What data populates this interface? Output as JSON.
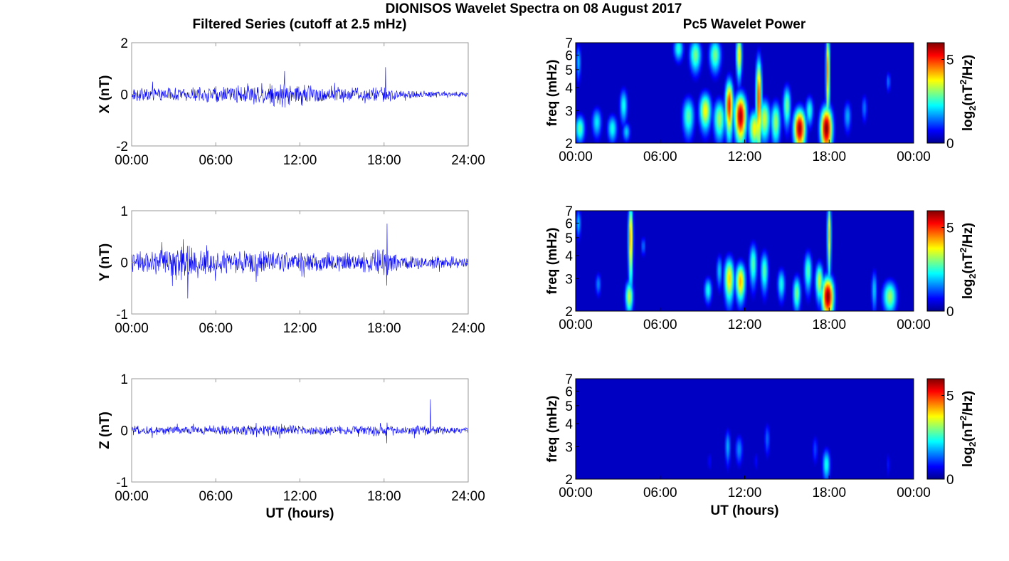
{
  "figure": {
    "title": "DIONISOS Wavelet Spectra on 08 August 2017",
    "left_column_title": "Filtered Series (cutoff at 2.5 mHz)",
    "right_column_title": "Pc5 Wavelet Power"
  },
  "chart_data": [
    {
      "type": "line",
      "panel": "time-series-x",
      "ylabel": "X (nT)",
      "xlabel": "",
      "ylim": [
        -2,
        2
      ],
      "yticks": [
        "-2",
        "0",
        "2"
      ],
      "xlim": [
        0,
        24
      ],
      "xticks": [
        "00:00",
        "06:00",
        "12:00",
        "18:00",
        "24:00"
      ],
      "series": [
        {
          "color": "#0000ff",
          "envelope_hours": [
            0,
            2,
            4,
            6,
            8,
            9,
            10,
            11,
            12,
            13,
            14,
            15,
            16,
            17,
            18,
            18.5,
            19,
            20,
            22,
            24
          ],
          "envelope_nT": [
            0.25,
            0.25,
            0.25,
            0.3,
            0.35,
            0.4,
            0.45,
            0.45,
            0.4,
            0.35,
            0.3,
            0.3,
            0.25,
            0.25,
            0.3,
            0.35,
            0.15,
            0.15,
            0.12,
            0.1
          ],
          "spikes": [
            {
              "hour": 18.1,
              "max": 1.05,
              "min": -1.3
            },
            {
              "hour": 10.9,
              "max": 0.9,
              "min": -0.6
            }
          ]
        }
      ],
      "grid": false
    },
    {
      "type": "line",
      "panel": "time-series-y",
      "ylabel": "Y (nT)",
      "xlabel": "",
      "ylim": [
        -1,
        1
      ],
      "yticks": [
        "-1",
        "0",
        "1"
      ],
      "xlim": [
        0,
        24
      ],
      "xticks": [
        "00:00",
        "06:00",
        "12:00",
        "18:00",
        "24:00"
      ],
      "series": [
        {
          "color": "#0000ff",
          "envelope_hours": [
            0,
            2,
            3,
            4,
            5,
            6,
            8,
            10,
            12,
            14,
            16,
            17,
            18,
            19,
            20,
            22,
            24
          ],
          "envelope_nT": [
            0.2,
            0.22,
            0.28,
            0.32,
            0.25,
            0.22,
            0.22,
            0.2,
            0.18,
            0.18,
            0.16,
            0.2,
            0.26,
            0.15,
            0.12,
            0.12,
            0.08
          ],
          "spikes": [
            {
              "hour": 4.0,
              "max": 0.6,
              "min": -0.7
            },
            {
              "hour": 18.2,
              "max": 0.75,
              "min": -0.45
            }
          ]
        }
      ],
      "grid": false
    },
    {
      "type": "line",
      "panel": "time-series-z",
      "ylabel": "Z (nT)",
      "xlabel": "UT (hours)",
      "ylim": [
        -1,
        1
      ],
      "yticks": [
        "-1",
        "0",
        "1"
      ],
      "xlim": [
        0,
        24
      ],
      "xticks": [
        "00:00",
        "06:00",
        "12:00",
        "18:00",
        "24:00"
      ],
      "series": [
        {
          "color": "#0000ff",
          "envelope_hours": [
            0,
            4,
            8,
            10,
            12,
            14,
            16,
            18,
            20,
            21,
            22,
            24
          ],
          "envelope_nT": [
            0.08,
            0.08,
            0.1,
            0.1,
            0.09,
            0.09,
            0.08,
            0.1,
            0.08,
            0.1,
            0.07,
            0.06
          ],
          "spikes": [
            {
              "hour": 21.3,
              "max": 0.6,
              "min": -0.1
            },
            {
              "hour": 18.2,
              "max": 0.15,
              "min": -0.25
            }
          ]
        }
      ],
      "grid": false
    },
    {
      "type": "heatmap",
      "panel": "wavelet-power-x",
      "ylabel": "freq (mHz)",
      "xlabel": "",
      "ylim": [
        2,
        7
      ],
      "yticks": [
        "2",
        "3",
        "4",
        "5",
        "6",
        "7"
      ],
      "xlim": [
        0,
        24
      ],
      "xticks": [
        "00:00",
        "06:00",
        "12:00",
        "18:00",
        "00:00"
      ],
      "colorbar": {
        "label": "log2(nT^2/Hz)",
        "ticks": [
          "0",
          "5"
        ],
        "range": [
          0,
          6
        ],
        "colormap": "jet"
      },
      "blobs": [
        {
          "t": 0.3,
          "f": 2.4,
          "p": 2.8,
          "wt": 0.25,
          "wf": 0.3
        },
        {
          "t": 0.2,
          "f": 5.5,
          "p": 2.0,
          "wt": 0.12,
          "wf": 0.9
        },
        {
          "t": 1.5,
          "f": 2.6,
          "p": 2.2,
          "wt": 0.25,
          "wf": 0.35
        },
        {
          "t": 2.6,
          "f": 2.4,
          "p": 2.4,
          "wt": 0.25,
          "wf": 0.3
        },
        {
          "t": 3.4,
          "f": 3.2,
          "p": 2.4,
          "wt": 0.2,
          "wf": 0.5
        },
        {
          "t": 3.6,
          "f": 2.3,
          "p": 2.0,
          "wt": 0.2,
          "wf": 0.2
        },
        {
          "t": 7.3,
          "f": 6.5,
          "p": 2.5,
          "wt": 0.25,
          "wf": 0.7
        },
        {
          "t": 8.0,
          "f": 2.8,
          "p": 2.8,
          "wt": 0.3,
          "wf": 0.5
        },
        {
          "t": 8.5,
          "f": 6.0,
          "p": 3.0,
          "wt": 0.3,
          "wf": 0.9
        },
        {
          "t": 9.2,
          "f": 3.0,
          "p": 3.8,
          "wt": 0.3,
          "wf": 0.5
        },
        {
          "t": 9.9,
          "f": 6.0,
          "p": 3.0,
          "wt": 0.3,
          "wf": 0.9
        },
        {
          "t": 10.2,
          "f": 2.7,
          "p": 3.2,
          "wt": 0.3,
          "wf": 0.5
        },
        {
          "t": 10.9,
          "f": 3.2,
          "p": 5.2,
          "wt": 0.2,
          "wf": 0.8
        },
        {
          "t": 11.7,
          "f": 2.8,
          "p": 5.8,
          "wt": 0.3,
          "wf": 0.6
        },
        {
          "t": 11.6,
          "f": 6.0,
          "p": 4.0,
          "wt": 0.15,
          "wf": 1.2
        },
        {
          "t": 12.7,
          "f": 2.4,
          "p": 3.8,
          "wt": 0.3,
          "wf": 0.4
        },
        {
          "t": 13.0,
          "f": 3.5,
          "p": 5.0,
          "wt": 0.15,
          "wf": 1.5
        },
        {
          "t": 13.4,
          "f": 2.7,
          "p": 3.5,
          "wt": 0.3,
          "wf": 0.5
        },
        {
          "t": 14.2,
          "f": 2.6,
          "p": 3.2,
          "wt": 0.25,
          "wf": 0.5
        },
        {
          "t": 15.0,
          "f": 3.2,
          "p": 3.0,
          "wt": 0.2,
          "wf": 0.6
        },
        {
          "t": 15.9,
          "f": 2.4,
          "p": 5.8,
          "wt": 0.3,
          "wf": 0.45
        },
        {
          "t": 16.6,
          "f": 3.0,
          "p": 2.5,
          "wt": 0.2,
          "wf": 0.4
        },
        {
          "t": 17.8,
          "f": 2.4,
          "p": 6.0,
          "wt": 0.3,
          "wf": 0.5
        },
        {
          "t": 17.9,
          "f": 5.0,
          "p": 4.5,
          "wt": 0.1,
          "wf": 2.0
        },
        {
          "t": 19.3,
          "f": 2.8,
          "p": 1.8,
          "wt": 0.2,
          "wf": 0.4
        },
        {
          "t": 20.5,
          "f": 3.1,
          "p": 1.5,
          "wt": 0.15,
          "wf": 0.4
        },
        {
          "t": 22.2,
          "f": 4.3,
          "p": 1.5,
          "wt": 0.12,
          "wf": 0.4
        }
      ]
    },
    {
      "type": "heatmap",
      "panel": "wavelet-power-y",
      "ylabel": "freq (mHz)",
      "xlabel": "",
      "ylim": [
        2,
        7
      ],
      "yticks": [
        "2",
        "3",
        "4",
        "5",
        "6",
        "7"
      ],
      "xlim": [
        0,
        24
      ],
      "xticks": [
        "00:00",
        "06:00",
        "12:00",
        "18:00",
        "00:00"
      ],
      "colorbar": {
        "label": "log2(nT^2/Hz)",
        "ticks": [
          "0",
          "5"
        ],
        "range": [
          0,
          6
        ],
        "colormap": "jet"
      },
      "blobs": [
        {
          "t": 0.2,
          "f": 6.0,
          "p": 2.0,
          "wt": 0.12,
          "wf": 0.8
        },
        {
          "t": 1.6,
          "f": 2.8,
          "p": 1.6,
          "wt": 0.15,
          "wf": 0.3
        },
        {
          "t": 3.8,
          "f": 2.4,
          "p": 3.5,
          "wt": 0.2,
          "wf": 0.35
        },
        {
          "t": 3.9,
          "f": 5.0,
          "p": 4.5,
          "wt": 0.12,
          "wf": 1.8
        },
        {
          "t": 4.8,
          "f": 4.5,
          "p": 1.5,
          "wt": 0.12,
          "wf": 0.4
        },
        {
          "t": 9.4,
          "f": 2.6,
          "p": 2.4,
          "wt": 0.2,
          "wf": 0.3
        },
        {
          "t": 10.2,
          "f": 3.3,
          "p": 2.0,
          "wt": 0.15,
          "wf": 0.5
        },
        {
          "t": 10.9,
          "f": 3.0,
          "p": 4.0,
          "wt": 0.25,
          "wf": 0.6
        },
        {
          "t": 11.7,
          "f": 2.9,
          "p": 4.2,
          "wt": 0.25,
          "wf": 0.5
        },
        {
          "t": 12.6,
          "f": 3.6,
          "p": 2.8,
          "wt": 0.2,
          "wf": 0.7
        },
        {
          "t": 13.4,
          "f": 3.3,
          "p": 2.8,
          "wt": 0.2,
          "wf": 0.6
        },
        {
          "t": 14.6,
          "f": 2.8,
          "p": 2.4,
          "wt": 0.2,
          "wf": 0.4
        },
        {
          "t": 15.7,
          "f": 2.5,
          "p": 3.0,
          "wt": 0.2,
          "wf": 0.4
        },
        {
          "t": 16.5,
          "f": 3.3,
          "p": 2.8,
          "wt": 0.2,
          "wf": 0.6
        },
        {
          "t": 17.3,
          "f": 2.9,
          "p": 3.5,
          "wt": 0.2,
          "wf": 0.5
        },
        {
          "t": 17.9,
          "f": 2.4,
          "p": 6.0,
          "wt": 0.3,
          "wf": 0.45
        },
        {
          "t": 18.0,
          "f": 5.2,
          "p": 4.0,
          "wt": 0.1,
          "wf": 1.8
        },
        {
          "t": 21.2,
          "f": 2.6,
          "p": 2.0,
          "wt": 0.15,
          "wf": 0.5
        },
        {
          "t": 22.3,
          "f": 2.4,
          "p": 3.2,
          "wt": 0.35,
          "wf": 0.35
        }
      ]
    },
    {
      "type": "heatmap",
      "panel": "wavelet-power-z",
      "ylabel": "freq (mHz)",
      "xlabel": "UT (hours)",
      "ylim": [
        2,
        7
      ],
      "yticks": [
        "2",
        "3",
        "4",
        "5",
        "6",
        "7"
      ],
      "xlim": [
        0,
        24
      ],
      "xticks": [
        "00:00",
        "06:00",
        "12:00",
        "18:00",
        "00:00"
      ],
      "colorbar": {
        "label": "log2(nT^2/Hz)",
        "ticks": [
          "0",
          "5"
        ],
        "range": [
          0,
          6
        ],
        "colormap": "jet"
      },
      "blobs": [
        {
          "t": 9.5,
          "f": 2.5,
          "p": 0.8,
          "wt": 0.12,
          "wf": 0.25
        },
        {
          "t": 10.8,
          "f": 3.0,
          "p": 1.8,
          "wt": 0.15,
          "wf": 0.5
        },
        {
          "t": 11.6,
          "f": 2.9,
          "p": 1.6,
          "wt": 0.2,
          "wf": 0.4
        },
        {
          "t": 12.8,
          "f": 2.5,
          "p": 0.8,
          "wt": 0.12,
          "wf": 0.25
        },
        {
          "t": 13.6,
          "f": 3.3,
          "p": 1.4,
          "wt": 0.15,
          "wf": 0.5
        },
        {
          "t": 17.0,
          "f": 2.9,
          "p": 1.2,
          "wt": 0.15,
          "wf": 0.4
        },
        {
          "t": 17.8,
          "f": 2.4,
          "p": 2.4,
          "wt": 0.2,
          "wf": 0.35
        },
        {
          "t": 22.2,
          "f": 2.4,
          "p": 0.9,
          "wt": 0.1,
          "wf": 0.3
        }
      ]
    }
  ]
}
